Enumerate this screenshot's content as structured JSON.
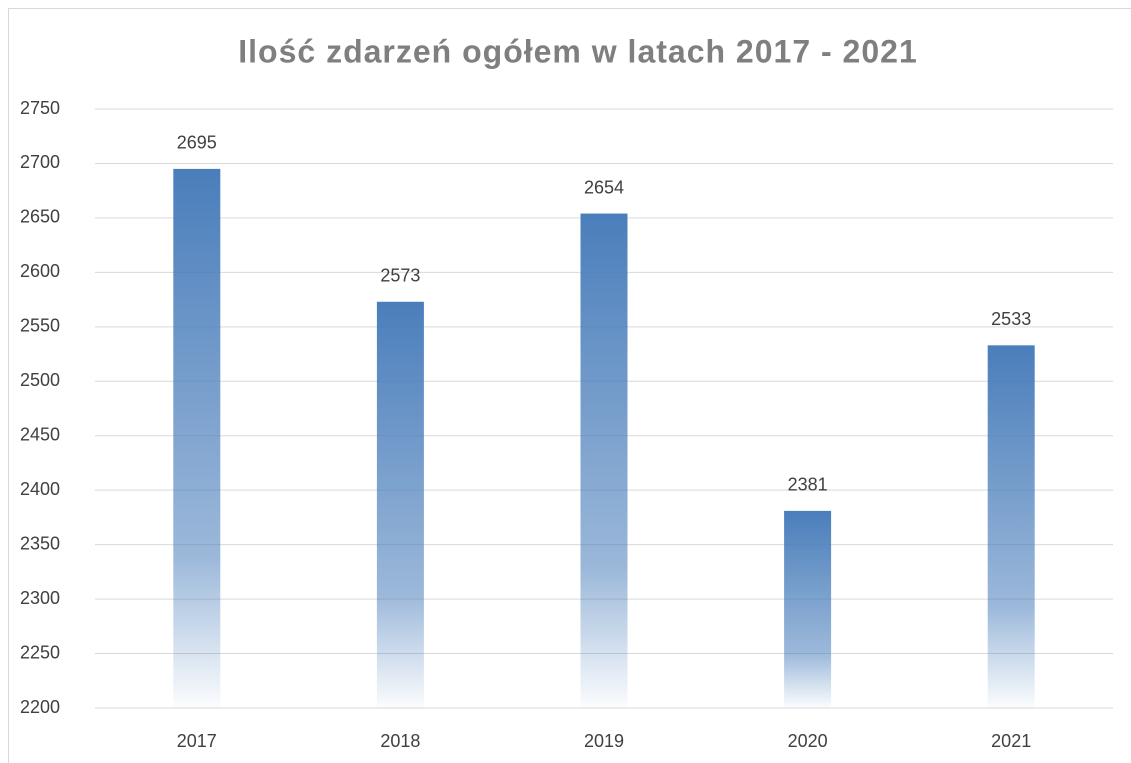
{
  "chart_data": {
    "type": "bar",
    "title": "Ilość zdarzeń ogółem w latach 2017 - 2021",
    "categories": [
      "2017",
      "2018",
      "2019",
      "2020",
      "2021"
    ],
    "values": [
      2695,
      2573,
      2654,
      2381,
      2533
    ],
    "color": "#4a7ebb",
    "ylim": [
      2200,
      2750
    ],
    "yticks": [
      2200,
      2250,
      2300,
      2350,
      2400,
      2450,
      2500,
      2550,
      2600,
      2650,
      2700,
      2750
    ],
    "grid": true
  }
}
